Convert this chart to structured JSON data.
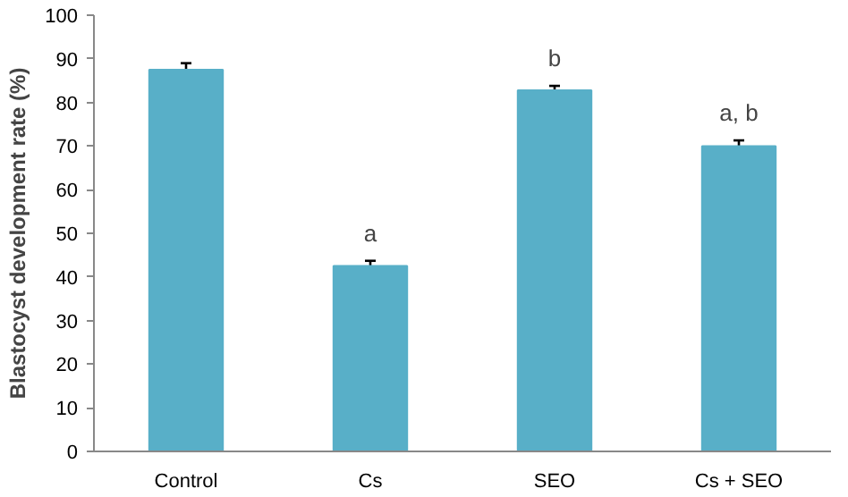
{
  "chart_data": {
    "type": "bar",
    "ylabel": "Blastocyst development rate (%)",
    "categories": [
      "Control",
      "Cs",
      "SEO",
      "Cs + SEO"
    ],
    "values": [
      87.5,
      42.5,
      82.8,
      70
    ],
    "errors": [
      1.5,
      1.2,
      1,
      1.3
    ],
    "color": "#58afc8",
    "ylim": [
      0,
      100
    ],
    "yticks": [
      0,
      10,
      20,
      30,
      40,
      50,
      60,
      70,
      80,
      90,
      100
    ],
    "grid": false,
    "annotations": [
      {
        "text": "a",
        "x": "Cs",
        "y": 42.5
      },
      {
        "text": "b",
        "x": "SEO",
        "y": 82.8
      },
      {
        "text": "a, b",
        "x": "Cs + SEO",
        "y": 70
      }
    ]
  }
}
